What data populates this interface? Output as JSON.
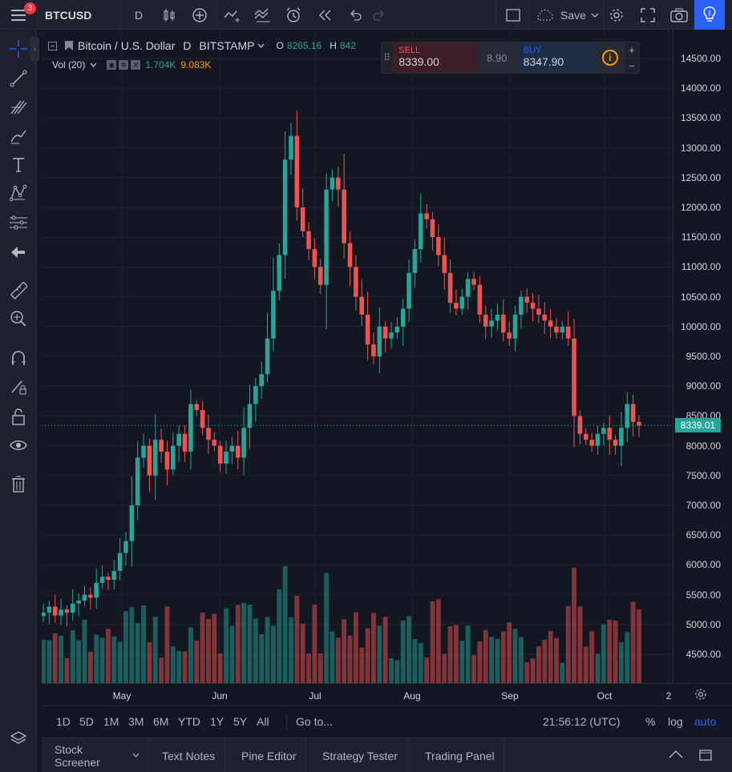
{
  "header": {
    "notification_count": "3",
    "symbol": "BTCUSD",
    "interval": "D",
    "save_label": "Save"
  },
  "legend": {
    "title": "Bitcoin / U.S. Dollar",
    "interval": "D",
    "exchange": "BITSTAMP",
    "open_key": "O",
    "open_value": "8265.16",
    "high_key": "H",
    "high_value": "842",
    "volume_label": "Vol (20)",
    "volume_value": "1.704K",
    "volume_ma_value": "9.083K"
  },
  "trade_panel": {
    "sell_label": "SELL",
    "sell_price": "8339.00",
    "spread": "8.90",
    "buy_label": "BUY",
    "buy_price": "8347.90",
    "info_symbol": "i",
    "plus": "+",
    "minus": "−"
  },
  "price_axis": {
    "ticks": [
      "14500.00",
      "14000.00",
      "13500.00",
      "13000.00",
      "12500.00",
      "12000.00",
      "11500.00",
      "11000.00",
      "10500.00",
      "10000.00",
      "9500.00",
      "9000.00",
      "8500.00",
      "8000.00",
      "7500.00",
      "7000.00",
      "6500.00",
      "6000.00",
      "5500.00",
      "5000.00",
      "4500.00"
    ],
    "last_price": "8339.01"
  },
  "time_axis": {
    "labels": [
      "May",
      "Jun",
      "Jul",
      "Aug",
      "Sep",
      "Oct",
      "2"
    ]
  },
  "range_bar": {
    "ranges": [
      "1D",
      "5D",
      "1M",
      "3M",
      "6M",
      "YTD",
      "1Y",
      "5Y",
      "All"
    ],
    "goto_label": "Go to...",
    "clock": "21:56:12 (UTC)",
    "percent_label": "%",
    "log_label": "log",
    "auto_label": "auto"
  },
  "bottom_tabs": [
    "Stock Screener",
    "Text Notes",
    "Pine Editor",
    "Strategy Tester",
    "Trading Panel"
  ],
  "colors": {
    "up": "#26a69a",
    "down": "#ef5350",
    "accent": "#2962ff",
    "background": "#131722"
  },
  "chart_data": {
    "type": "candlestick",
    "symbol": "BTCUSD",
    "exchange": "BITSTAMP",
    "interval": "D",
    "ylim": [
      4300,
      14800
    ],
    "volume_series": "Vol (20)",
    "closes_approx": [
      5200,
      5300,
      5150,
      5250,
      5200,
      5350,
      5400,
      5500,
      5450,
      5700,
      5800,
      5750,
      5900,
      6200,
      6400,
      7000,
      7800,
      8000,
      7500,
      8100,
      7900,
      7600,
      8000,
      8200,
      7900,
      8700,
      8600,
      8300,
      8100,
      8000,
      7700,
      7900,
      8000,
      7800,
      8300,
      8700,
      9000,
      9200,
      9800,
      10600,
      11200,
      12800,
      13200,
      12000,
      11600,
      11300,
      11000,
      10700,
      12300,
      12500,
      12300,
      11400,
      11000,
      10500,
      10200,
      9700,
      9500,
      10000,
      9800,
      9900,
      10000,
      10300,
      10900,
      11300,
      11900,
      11800,
      11500,
      11200,
      10900,
      10400,
      10300,
      10500,
      10800,
      10700,
      10200,
      10000,
      10100,
      10200,
      9900,
      9800,
      10200,
      10500,
      10400,
      10300,
      10200,
      10100,
      10000,
      9900,
      10000,
      9800,
      8500,
      8200,
      8100,
      8000,
      8200,
      8300,
      8100,
      8000,
      8300,
      8700,
      8400,
      8339
    ]
  }
}
